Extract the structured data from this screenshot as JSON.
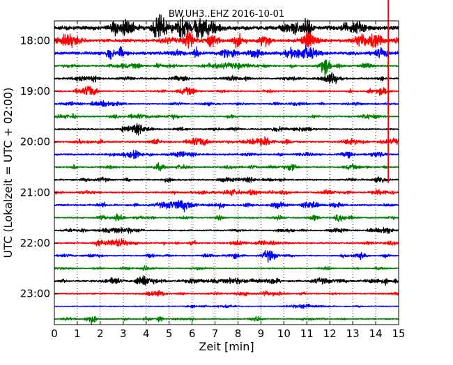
{
  "chart_data": {
    "type": "line",
    "title": "BW.UH3..EHZ 2016-10-01",
    "xlabel": "Zeit  [min]",
    "ylabel": "UTC (Lokalzeit = UTC + 02:00)",
    "xlim": [
      0,
      15
    ],
    "x_ticks": [
      "0",
      "1",
      "2",
      "3",
      "4",
      "5",
      "6",
      "7",
      "8",
      "9",
      "10",
      "11",
      "12",
      "13",
      "14",
      "15"
    ],
    "y_ticks": [
      "18:00",
      "19:00",
      "20:00",
      "21:00",
      "22:00",
      "23:00"
    ],
    "grid": "vertical dotted lines at each minute",
    "trace_colors": [
      "#000000",
      "#ff0000",
      "#0000ff",
      "#008000"
    ],
    "traces": [
      {
        "start": "17:45",
        "amplitude": 0.7
      },
      {
        "start": "18:00",
        "amplitude": 0.55
      },
      {
        "start": "18:15",
        "amplitude": 0.55
      },
      {
        "start": "18:30",
        "amplitude": 0.3
      },
      {
        "start": "18:45",
        "amplitude": 0.3
      },
      {
        "start": "19:00",
        "amplitude": 0.25
      },
      {
        "start": "19:15",
        "amplitude": 0.2
      },
      {
        "start": "19:30",
        "amplitude": 0.25
      },
      {
        "start": "19:45",
        "amplitude": 0.25
      },
      {
        "start": "20:00",
        "amplitude": 0.3
      },
      {
        "start": "20:15",
        "amplitude": 0.3
      },
      {
        "start": "20:30",
        "amplitude": 0.25
      },
      {
        "start": "20:45",
        "amplitude": 0.25
      },
      {
        "start": "21:00",
        "amplitude": 0.25
      },
      {
        "start": "21:15",
        "amplitude": 0.3
      },
      {
        "start": "21:30",
        "amplitude": 0.2
      },
      {
        "start": "21:45",
        "amplitude": 0.2
      },
      {
        "start": "22:00",
        "amplitude": 0.25
      },
      {
        "start": "22:15",
        "amplitude": 0.2
      },
      {
        "start": "22:30",
        "amplitude": 0.15
      },
      {
        "start": "22:45",
        "amplitude": 0.3
      },
      {
        "start": "23:00",
        "amplitude": 0.2
      },
      {
        "start": "23:15",
        "amplitude": 0.15
      },
      {
        "start": "23:30",
        "amplitude": 0.2
      }
    ],
    "events": [
      {
        "trace": "18:30",
        "x": 11.8,
        "amplitude": 1.0
      },
      {
        "trace": "19:00",
        "x": 14.55,
        "amplitude": 1.1,
        "note": "large vertical spike spanning several traces"
      },
      {
        "trace": "21:30",
        "x": 2.8,
        "amplitude": 0.5
      },
      {
        "trace": "22:15",
        "x": 9.3,
        "amplitude": 0.55
      },
      {
        "trace": "22:45",
        "x": 3.8,
        "amplitude": 0.6
      },
      {
        "trace": "23:30",
        "x": 1.6,
        "amplitude": 0.5
      }
    ]
  }
}
